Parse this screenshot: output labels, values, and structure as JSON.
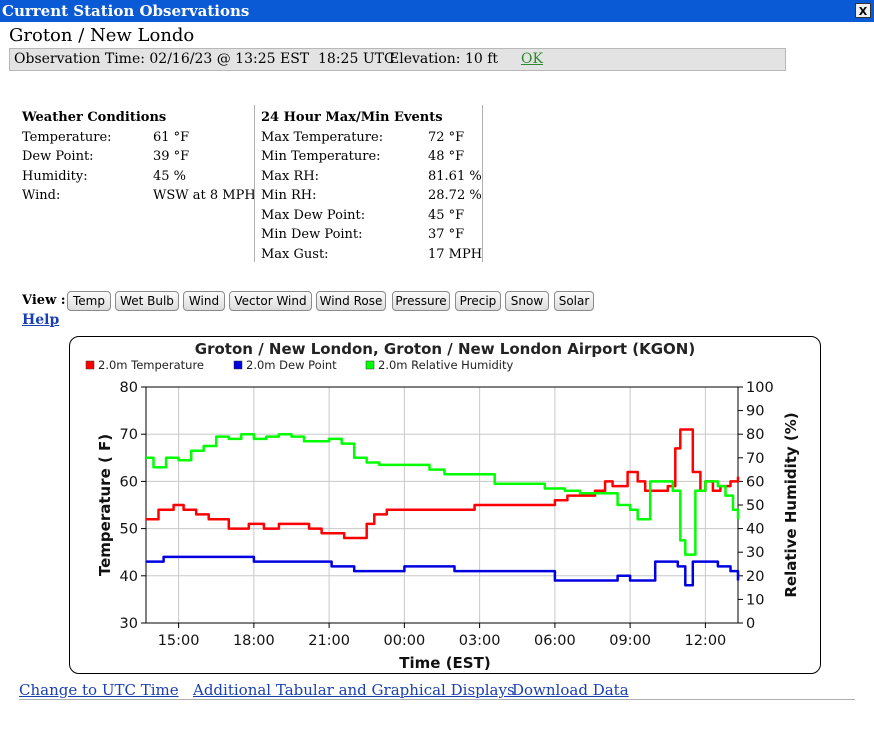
{
  "window": {
    "title": "Current Station Observations",
    "close_label": "X"
  },
  "station": {
    "name": "Groton / New Londo"
  },
  "observation": {
    "time_label": "Observation Time: 02/16/23 @ 13:25 EST  18:25 UTC",
    "elevation_label": "Elevation: 10 ft",
    "status": "OK"
  },
  "weather_conditions": {
    "heading": "Weather Conditions",
    "labels": [
      "Temperature:",
      "Dew Point:",
      "Humidity:",
      "Wind:"
    ],
    "values": [
      "61 °F",
      "39 °F",
      "45 %",
      "WSW at 8 MPH"
    ]
  },
  "max_min": {
    "heading": "24 Hour Max/Min Events",
    "labels": [
      "Max Temperature:",
      "Min Temperature:",
      "Max RH:",
      "Min RH:",
      "Max Dew Point:",
      "Min Dew Point:",
      "Max Gust:"
    ],
    "values": [
      "72 °F",
      "48 °F",
      "81.61 %",
      "28.72 %",
      "45 °F",
      "37 °F",
      "17 MPH"
    ]
  },
  "view": {
    "label": "View :",
    "buttons": [
      "Temp",
      "Wet Bulb",
      "Wind",
      "Vector Wind",
      "Wind Rose",
      "Pressure",
      "Precip",
      "Snow",
      "Solar"
    ],
    "help": "Help"
  },
  "footer": {
    "links": [
      "Change to UTC Time",
      "Additional Tabular and Graphical Displays",
      "Download Data"
    ]
  },
  "colors": {
    "temperature": "#ff0000",
    "dew_point": "#0000e0",
    "humidity": "#00ff00",
    "title_bar": "#0a5ad6",
    "link": "#1a3fb0"
  },
  "chart_data": {
    "type": "line",
    "title": "Groton / New London, Groton / New London Airport (KGON)",
    "xlabel": "Time (EST)",
    "ylabel": "Temperature ( F)",
    "y2label": "Relative Humidity (%)",
    "x_unit": "hours from 00:00 EST 02/16/23",
    "xlim": [
      -10.3,
      13.3
    ],
    "ylim": [
      30,
      80
    ],
    "y2lim": [
      0,
      100
    ],
    "x_ticks": [
      -9,
      -6,
      -3,
      0,
      3,
      6,
      9,
      12
    ],
    "x_tick_labels": [
      "15:00",
      "18:00",
      "21:00",
      "00:00",
      "03:00",
      "06:00",
      "09:00",
      "12:00"
    ],
    "y_ticks": [
      30,
      40,
      50,
      60,
      70,
      80
    ],
    "y2_ticks": [
      0,
      10,
      20,
      30,
      40,
      50,
      60,
      70,
      80,
      90,
      100
    ],
    "grid": true,
    "legend": "top-left",
    "series": [
      {
        "name": "2.0m Temperature",
        "axis": "left",
        "color": "#ff0000",
        "x": [
          -10.3,
          -9.8,
          -9.2,
          -8.8,
          -8.3,
          -7.8,
          -7.4,
          -7.0,
          -6.2,
          -5.6,
          -5.0,
          -4.3,
          -3.8,
          -3.3,
          -2.8,
          -2.4,
          -1.5,
          -1.2,
          -0.7,
          0.2,
          1.0,
          2.0,
          2.8,
          3.6,
          4.5,
          5.3,
          6.0,
          6.5,
          7.0,
          7.6,
          8.0,
          8.3,
          8.9,
          9.1,
          9.3,
          9.6,
          10.0,
          10.5,
          10.8,
          11.0,
          11.3,
          11.5,
          11.8,
          12.0,
          12.3,
          12.6,
          13.0,
          13.3
        ],
        "y": [
          52,
          54,
          55,
          54,
          53,
          52,
          52,
          50,
          51,
          50,
          51,
          51,
          50,
          49,
          49,
          48,
          51,
          53,
          54,
          54,
          54,
          54,
          55,
          55,
          55,
          55,
          56,
          57,
          57,
          58,
          60,
          59,
          62,
          62,
          60,
          58,
          58,
          59,
          67,
          71,
          71,
          62,
          58,
          60,
          58,
          59,
          60,
          61
        ]
      },
      {
        "name": "2.0m Dew Point",
        "axis": "left",
        "color": "#0000e0",
        "x": [
          -10.3,
          -9.6,
          -8.0,
          -7.0,
          -6.0,
          -4.9,
          -3.9,
          -2.9,
          -2.0,
          -1.0,
          0.0,
          1.0,
          2.0,
          3.0,
          4.5,
          5.8,
          6.0,
          7.0,
          8.0,
          8.5,
          9.0,
          9.5,
          10.0,
          10.5,
          10.9,
          11.2,
          11.5,
          12.0,
          12.5,
          13.0,
          13.3
        ],
        "y": [
          43,
          44,
          44,
          44,
          43,
          43,
          43,
          42,
          41,
          41,
          42,
          42,
          41,
          41,
          41,
          41,
          39,
          39,
          39,
          40,
          39,
          39,
          43,
          43,
          42,
          38,
          43,
          43,
          42,
          41,
          39
        ]
      },
      {
        "name": "2.0m Relative Humidity",
        "axis": "right",
        "color": "#00ff00",
        "x": [
          -10.3,
          -10.0,
          -9.5,
          -9.0,
          -8.5,
          -8.0,
          -7.5,
          -7.0,
          -6.5,
          -6.0,
          -5.5,
          -5.0,
          -4.5,
          -4.0,
          -3.5,
          -3.0,
          -2.5,
          -2.0,
          -1.5,
          -1.0,
          0.0,
          1.0,
          1.6,
          2.6,
          3.6,
          4.6,
          5.6,
          6.4,
          7.0,
          7.6,
          8.0,
          8.5,
          9.0,
          9.3,
          9.8,
          10.3,
          10.7,
          11.0,
          11.2,
          11.6,
          12.0,
          12.5,
          12.8,
          13.1,
          13.3
        ],
        "y": [
          70,
          66,
          70,
          69,
          73,
          75,
          79,
          78,
          80,
          78,
          79,
          80,
          79,
          77,
          77,
          78,
          76,
          70,
          68,
          67,
          67,
          65,
          63,
          63,
          59,
          59,
          57,
          56,
          55,
          55,
          55,
          50,
          48,
          44,
          60,
          60,
          56,
          35,
          29,
          56,
          60,
          58,
          54,
          48,
          44
        ]
      }
    ]
  }
}
